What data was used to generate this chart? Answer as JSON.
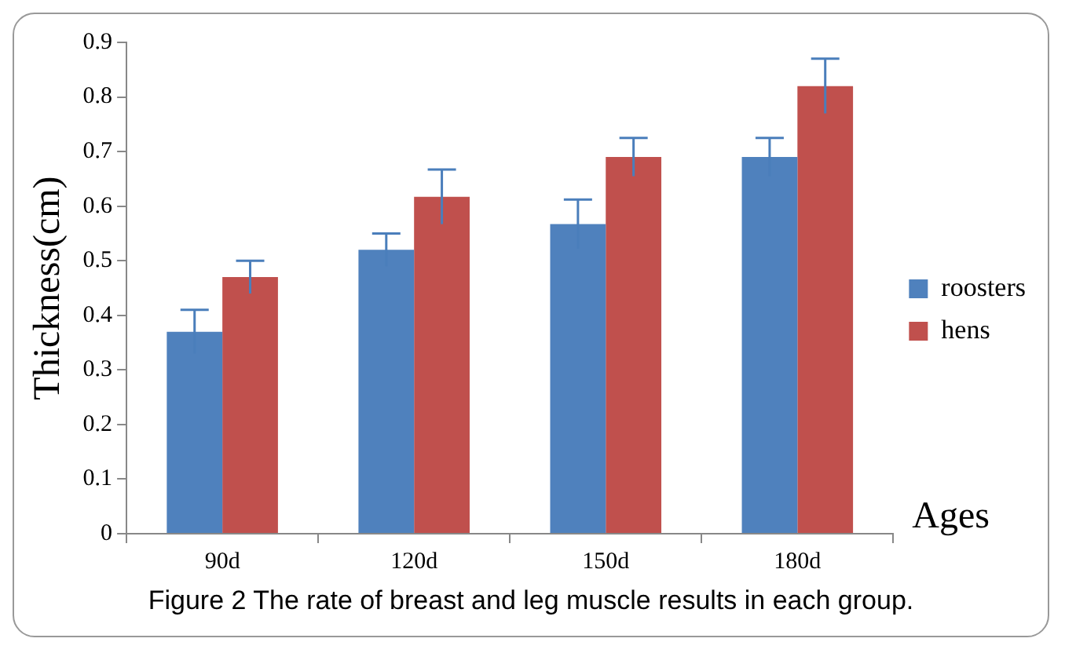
{
  "chart_data": {
    "type": "bar",
    "categories": [
      "90d",
      "120d",
      "150d",
      "180d"
    ],
    "series": [
      {
        "name": "roosters",
        "color": "#4f81bd",
        "values": [
          0.37,
          0.52,
          0.567,
          0.69
        ],
        "errors": [
          0.04,
          0.03,
          0.045,
          0.035
        ]
      },
      {
        "name": "hens",
        "color": "#c0504d",
        "values": [
          0.47,
          0.617,
          0.69,
          0.82
        ],
        "errors": [
          0.03,
          0.05,
          0.035,
          0.05
        ]
      }
    ],
    "ylim": [
      0,
      0.9
    ],
    "yticks": [
      0,
      0.1,
      0.2,
      0.3,
      0.4,
      0.5,
      0.6,
      0.7,
      0.8,
      0.9
    ],
    "xlabel": "Ages",
    "ylabel": "Thickness(cm)",
    "grid": false,
    "legend": "right",
    "annotations": [
      "Figure 2 The rate of breast and leg muscle results in each group."
    ]
  }
}
